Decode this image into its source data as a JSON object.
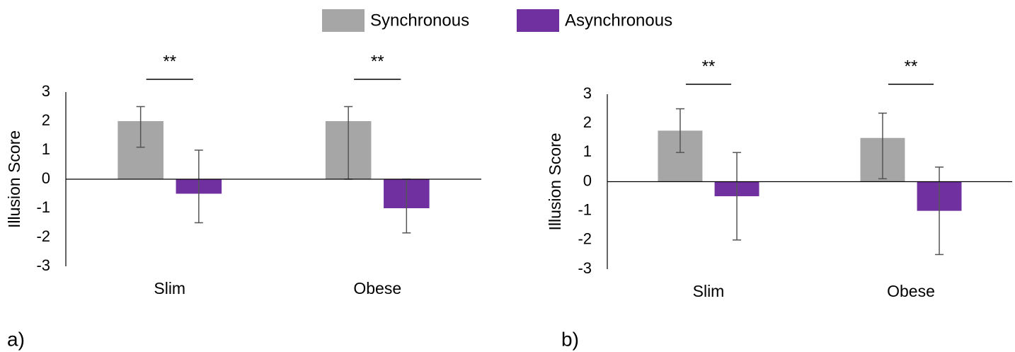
{
  "legend": {
    "position": "top"
  },
  "chart_data": [
    {
      "type": "bar",
      "label": "a)",
      "ylabel": "Illusion Score",
      "categories": [
        "Slim",
        "Obese"
      ],
      "series": [
        {
          "name": "Synchronous",
          "color": "#a6a6a6",
          "values": [
            2,
            2
          ],
          "lower": [
            1.1,
            0
          ],
          "upper": [
            2.5,
            2.5
          ]
        },
        {
          "name": "Asynchronous",
          "color": "#7030a0",
          "values": [
            -0.5,
            -1
          ],
          "lower": [
            -1.5,
            -1.85
          ],
          "upper": [
            1,
            0
          ]
        }
      ],
      "annotations": [
        "**",
        "**"
      ],
      "ylim": [
        -3,
        3
      ],
      "yticks": [
        -3,
        -2,
        -1,
        0,
        1,
        2,
        3
      ],
      "grid": false
    },
    {
      "type": "bar",
      "label": "b)",
      "ylabel": "Illusion Score",
      "categories": [
        "Slim",
        "Obese"
      ],
      "series": [
        {
          "name": "Synchronous",
          "color": "#a6a6a6",
          "values": [
            1.75,
            1.5
          ],
          "lower": [
            1,
            0.1
          ],
          "upper": [
            2.5,
            2.35
          ]
        },
        {
          "name": "Asynchronous",
          "color": "#7030a0",
          "values": [
            -0.5,
            -1
          ],
          "lower": [
            -2,
            -2.5
          ],
          "upper": [
            1,
            0.5
          ]
        }
      ],
      "annotations": [
        "**",
        "**"
      ],
      "ylim": [
        -3,
        3
      ],
      "yticks": [
        -3,
        -2,
        -1,
        0,
        1,
        2,
        3
      ],
      "grid": false
    }
  ]
}
